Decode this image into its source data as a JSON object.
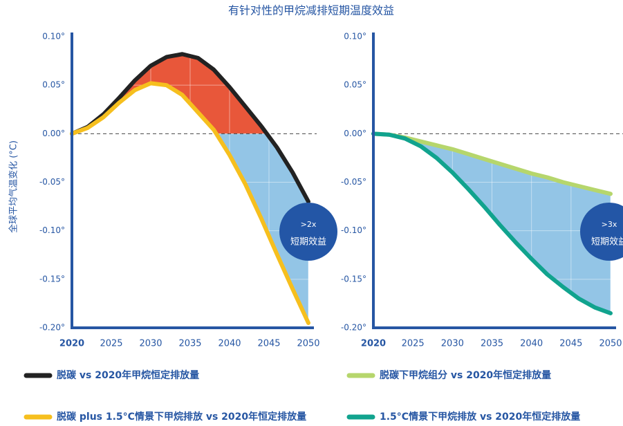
{
  "chart_data": [
    {
      "type": "line",
      "title": "有针对性的甲烷减排短期温度效益",
      "ylabel": "全球平均气温变化 (°C)",
      "x": [
        2020,
        2022,
        2024,
        2026,
        2028,
        2030,
        2032,
        2034,
        2036,
        2038,
        2040,
        2042,
        2044,
        2046,
        2048,
        2050
      ],
      "xlim": [
        2020,
        2050
      ],
      "xticks": [
        2020,
        2025,
        2030,
        2035,
        2040,
        2045,
        2050
      ],
      "ylim": [
        -0.2,
        0.1
      ],
      "yticks": [
        {
          "value": 0.1,
          "label": "0.10°"
        },
        {
          "value": 0.05,
          "label": "0.05°"
        },
        {
          "value": 0,
          "label": "0.00°"
        },
        {
          "value": -0.05,
          "label": "-0.05°"
        },
        {
          "value": -0.1,
          "label": "-0.10°"
        },
        {
          "value": -0.15,
          "label": "-0.15°"
        },
        {
          "value": -0.2,
          "label": "-0.20°"
        }
      ],
      "grid": true,
      "fill_colors": {
        "above": "#e8573a",
        "below": "#93c5e6"
      },
      "series": [
        {
          "name": "脱碳 vs 2020年甲烷恒定排放量",
          "color": "#222222",
          "values": [
            0,
            0.007,
            0.02,
            0.037,
            0.055,
            0.07,
            0.079,
            0.082,
            0.078,
            0.066,
            0.048,
            0.028,
            0.008,
            -0.014,
            -0.04,
            -0.07
          ]
        },
        {
          "name": "脱碳 plus 1.5°C情景下甲烷排放 vs 2020年恒定排放量",
          "color": "#f6bf1e",
          "values": [
            0,
            0.006,
            0.017,
            0.032,
            0.045,
            0.052,
            0.05,
            0.04,
            0.022,
            0.004,
            -0.022,
            -0.052,
            -0.087,
            -0.124,
            -0.16,
            -0.195
          ]
        }
      ],
      "annotation": [
        ">2x",
        "短期效益"
      ]
    },
    {
      "type": "line",
      "x": [
        2020,
        2022,
        2024,
        2026,
        2028,
        2030,
        2032,
        2034,
        2036,
        2038,
        2040,
        2042,
        2044,
        2046,
        2048,
        2050
      ],
      "xlim": [
        2020,
        2050
      ],
      "xticks": [
        2020,
        2025,
        2030,
        2035,
        2040,
        2045,
        2050
      ],
      "ylim": [
        -0.2,
        0.1
      ],
      "yticks": [
        {
          "value": 0.1,
          "label": "0.10°"
        },
        {
          "value": 0.05,
          "label": "0.05°"
        },
        {
          "value": 0,
          "label": "0.00°"
        },
        {
          "value": -0.05,
          "label": "-0.05°"
        },
        {
          "value": -0.1,
          "label": "-0.10°"
        },
        {
          "value": -0.15,
          "label": "-0.15°"
        },
        {
          "value": -0.2,
          "label": "-0.20°"
        }
      ],
      "grid": true,
      "fill_colors": {
        "above": "#93c5e6",
        "below": "#93c5e6"
      },
      "series": [
        {
          "name": "脱碳下甲烷组分 vs 2020年恒定排放量",
          "color": "#b6d66c",
          "values": [
            0,
            -0.001,
            -0.004,
            -0.008,
            -0.012,
            -0.016,
            -0.021,
            -0.026,
            -0.031,
            -0.036,
            -0.041,
            -0.045,
            -0.05,
            -0.054,
            -0.058,
            -0.062
          ]
        },
        {
          "name": "1.5°C情景下甲烷排放 vs 2020年恒定排放量",
          "color": "#11a38e",
          "values": [
            0,
            -0.001,
            -0.005,
            -0.013,
            -0.025,
            -0.04,
            -0.057,
            -0.075,
            -0.094,
            -0.112,
            -0.129,
            -0.145,
            -0.158,
            -0.17,
            -0.179,
            -0.185
          ]
        }
      ],
      "annotation": [
        ">3x",
        "短期效益"
      ]
    }
  ]
}
